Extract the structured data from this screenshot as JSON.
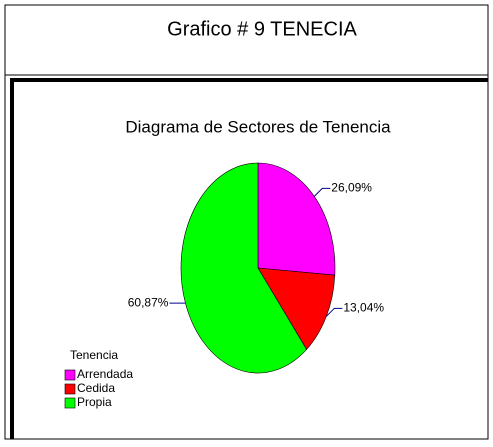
{
  "page_title": "Grafico # 9 TENECIA",
  "chart_data": {
    "type": "pie",
    "title": "Diagrama de Sectores de Tenencia",
    "legend_title": "Tenencia",
    "categories": [
      "Arrendada",
      "Cedida",
      "Propia"
    ],
    "values": [
      26.09,
      13.04,
      60.87
    ],
    "value_labels": [
      "26,09%",
      "13,04%",
      "60,87%"
    ],
    "colors": [
      "#ff00ff",
      "#ff0000",
      "#00ff00"
    ],
    "legend": "bottom-left"
  }
}
